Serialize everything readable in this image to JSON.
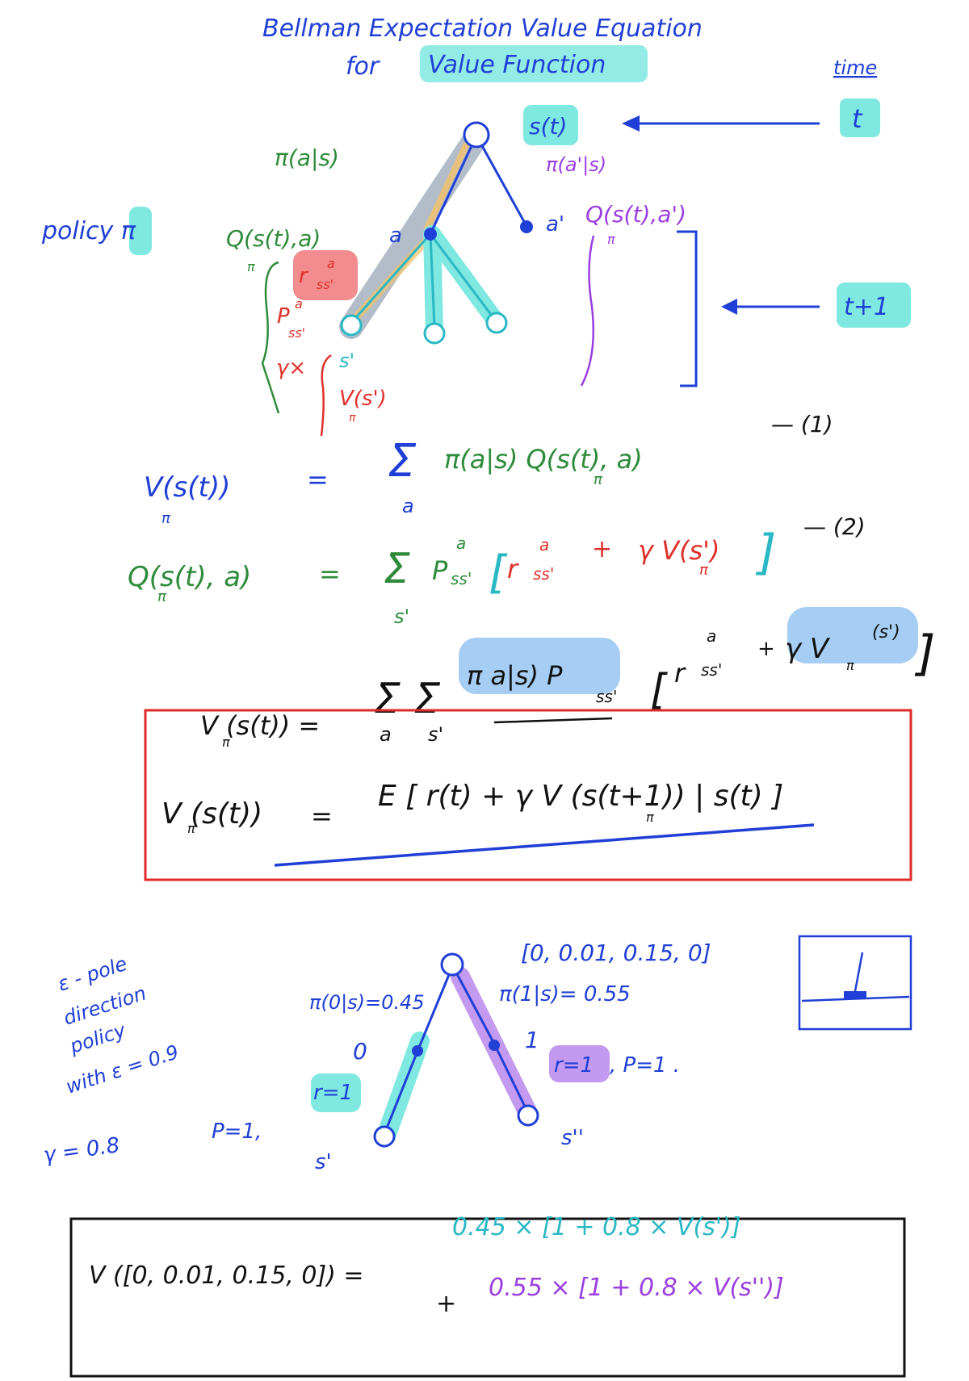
{
  "colors": {
    "blue": "#1f3fd6",
    "green": "#2e8b3a",
    "red": "#e0302a",
    "purple": "#9a3fe0",
    "cyan": "#2ab8c4",
    "highlight_cyan": "#7fe8e0",
    "highlight_blue": "#9cc8f2",
    "highlight_red": "#f0787a",
    "highlight_purple": "#c39af0",
    "box_red": "#e02a2a",
    "box_black": "#111111"
  },
  "header": {
    "title_line1": "Bellman Expectation Value Equation",
    "title_line2_prefix": "for",
    "title_line2_highlight": "Value Function"
  },
  "tree": {
    "time_label": "time",
    "time_t": "t",
    "time_t1": "t+1",
    "state_label": "s(t)",
    "policy_label": "policy π",
    "pi_a_s": "π(a|s)",
    "pi_a2_s": "π(a'|s)",
    "action_a": "a",
    "action_a2": "a'",
    "q_label": "Q(s(t),a)",
    "q_sub": "π",
    "q2_label": "Q(s(t),a')",
    "q2_sub": "π",
    "reward": "r",
    "reward_sup": "a",
    "reward_sub": "ss'",
    "prob": "P",
    "prob_sup": "a",
    "prob_sub": "ss'",
    "gamma_times": "γ×",
    "s_prime": "s'",
    "v_s_prime": "V(s')",
    "v_sub": "π"
  },
  "equations": {
    "eq1_lhs": "V(s(t))",
    "eq1_lhs_sub": "π",
    "eq1_eq": "=",
    "eq1_sum": "Σ",
    "eq1_sum_index": "a",
    "eq1_rhs": "π(a|s) Q(s(t), a)",
    "eq1_rhs_sub": "π",
    "eq1_tag": "— (1)",
    "eq2_lhs": "Q(s(t), a)",
    "eq2_lhs_sub": "π",
    "eq2_eq": "=",
    "eq2_sum": "Σ",
    "eq2_sum_index": "s'",
    "eq2_p": "P",
    "eq2_p_sup": "a",
    "eq2_p_sub": "ss'",
    "eq2_bracket_open": "[",
    "eq2_r": "r",
    "eq2_r_sup": "a",
    "eq2_r_sub": "ss'",
    "eq2_plus": "+",
    "eq2_gamma_v": "γ V(s')",
    "eq2_v_sub": "π",
    "eq2_bracket_close": "]",
    "eq2_tag": "— (2)",
    "eq3_lhs": "V (s(t)) =",
    "eq3_lhs_sub": "π",
    "eq3_sums": "Σ Σ",
    "eq3_sum_index_a": "a",
    "eq3_sum_index_s": "s'",
    "eq3_pi": "π a|s) P",
    "eq3_p_sub": "ss'",
    "eq3_bracket_open": "[",
    "eq3_r": "r",
    "eq3_r_sup": "a",
    "eq3_r_sub": "ss'",
    "eq3_plus": "+",
    "eq3_gamma_v": "γ V",
    "eq3_v_sub": "π",
    "eq3_v_arg": "(s')",
    "eq3_bracket_close": "]",
    "boxed_lhs": "V (s(t))",
    "boxed_lhs_sub": "π",
    "boxed_eq": "=",
    "boxed_rhs": "E [ r(t) + γ V (s(t+1)) | s(t) ]",
    "boxed_rhs_vsub": "π"
  },
  "example": {
    "note_line1": "ε - pole",
    "note_line2": "direction",
    "note_line3": "policy",
    "note_line4": "with ε = 0.9",
    "gamma": "γ = 0.8",
    "state_vector": "[0, 0.01, 0.15, 0]",
    "pi0": "π(0|s)=0.45",
    "pi1": "π(1|s)= 0.55",
    "action0": "0",
    "action1": "1",
    "p_left": "P=1,",
    "r_left": "r=1",
    "r_right": "r=1",
    "p_right": ", P=1 .",
    "s_prime": "s'",
    "s_double_prime": "s''",
    "final_lhs": "V ([0, 0.01, 0.15, 0]) =",
    "final_line1": "0.45 × [1 + 0.8 × V(s')]",
    "final_line2_plus": "+",
    "final_line2": "0.55 × [1 + 0.8 × V(s'')]"
  }
}
